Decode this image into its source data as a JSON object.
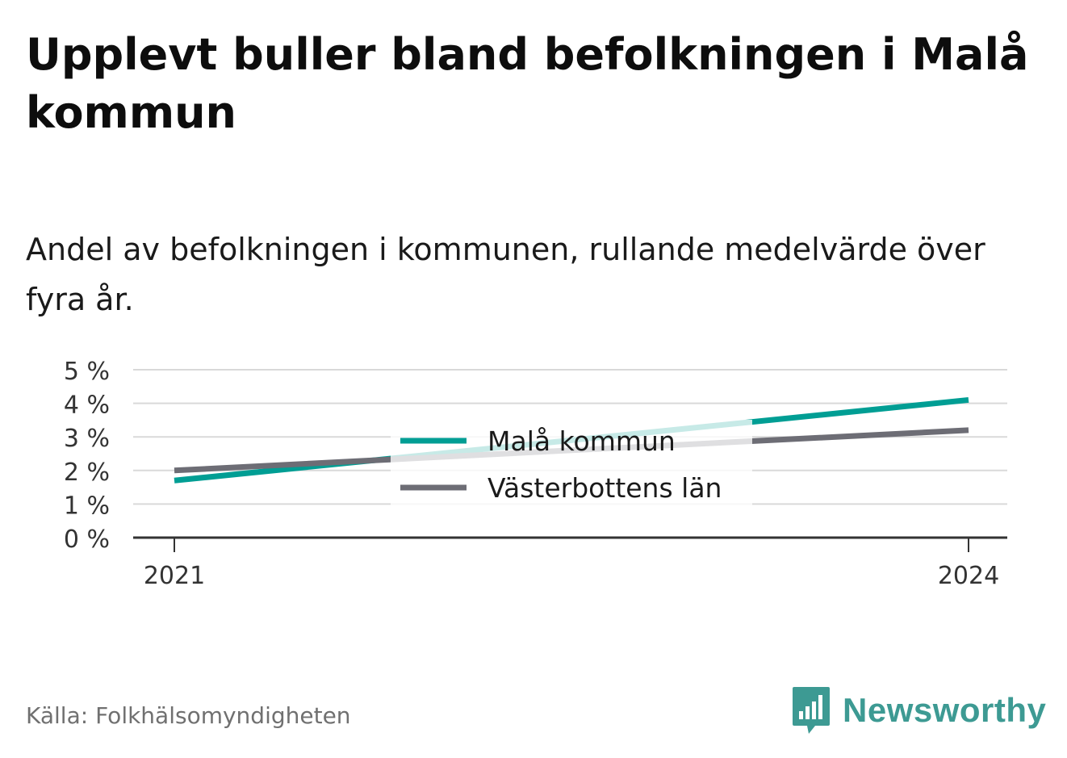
{
  "title": "Upplevt buller bland befolkningen i Malå kommun",
  "subtitle": "Andel av befolkningen i kommunen, rullande medelvärde över fyra år.",
  "source": "Källa: Folkhälsomyndigheten",
  "brand": "Newsworthy",
  "colors": {
    "accent": "#009e94",
    "secondary": "#6d6d75",
    "brand": "#3d9a93"
  },
  "chart_data": {
    "type": "line",
    "x": [
      "2021",
      "2024"
    ],
    "series": [
      {
        "name": "Malå kommun",
        "values": [
          1.7,
          4.1
        ],
        "color": "#009e94"
      },
      {
        "name": "Västerbottens län",
        "values": [
          2.0,
          3.2
        ],
        "color": "#6d6d75"
      }
    ],
    "yticks": [
      "0 %",
      "1 %",
      "2 %",
      "3 %",
      "4 %",
      "5 %"
    ],
    "ylim": [
      0,
      5
    ],
    "grid": true,
    "legend": "center"
  }
}
